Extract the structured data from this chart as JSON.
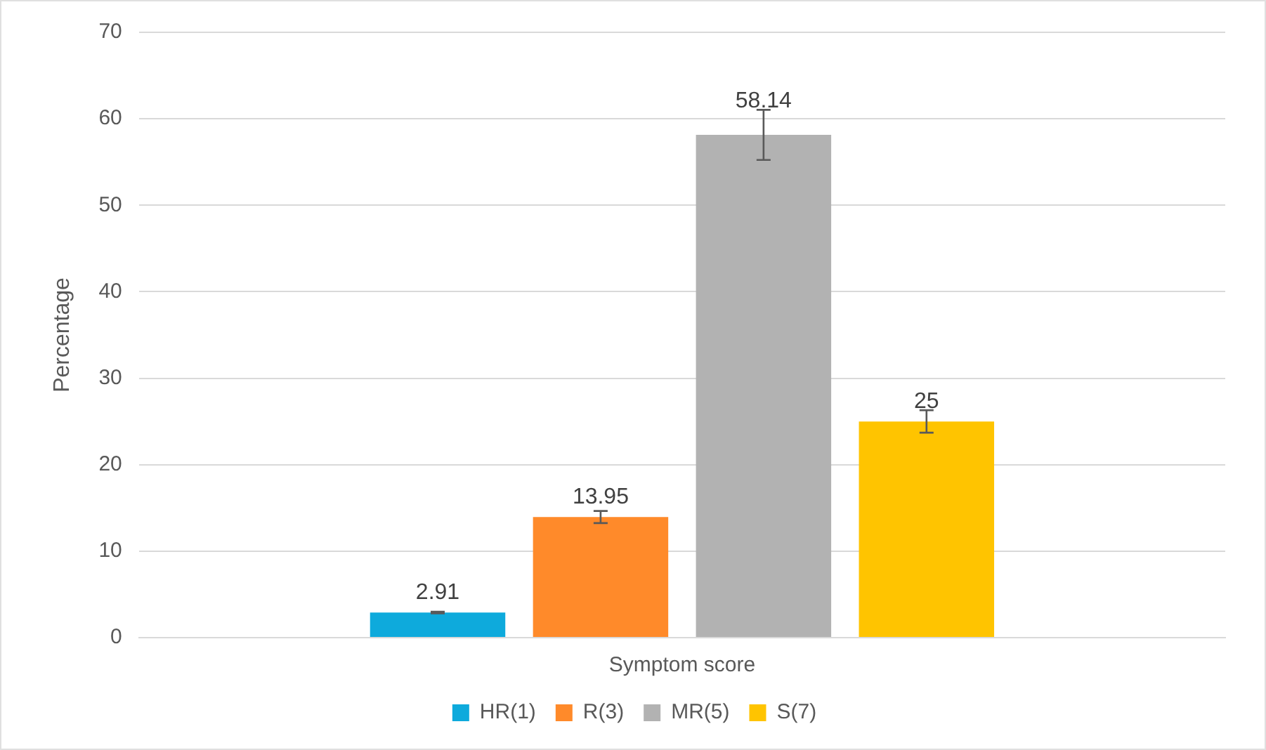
{
  "chart_data": {
    "type": "bar",
    "ylabel": "Percentage",
    "categories": [
      "Symptom score"
    ],
    "series": [
      {
        "name": "HR(1)",
        "color": "#0eaadc",
        "values": [
          2.91
        ],
        "errors": [
          0.1
        ]
      },
      {
        "name": "R(3)",
        "color": "#ff8a2a",
        "values": [
          13.95
        ],
        "errors": [
          0.7
        ]
      },
      {
        "name": "MR(5)",
        "color": "#b2b2b2",
        "values": [
          58.14
        ],
        "errors": [
          2.9
        ]
      },
      {
        "name": "S(7)",
        "color": "#ffc400",
        "values": [
          25
        ],
        "errors": [
          1.3
        ]
      }
    ],
    "ylim": [
      0,
      70
    ],
    "yticks": [
      0,
      10,
      20,
      30,
      40,
      50,
      60,
      70
    ],
    "grid": "y",
    "legend": "bottom",
    "data_labels": true
  }
}
